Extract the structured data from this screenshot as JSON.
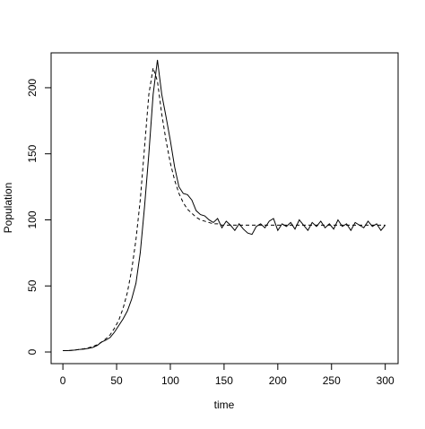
{
  "chart_data": {
    "type": "line",
    "xlabel": "time",
    "ylabel": "Population",
    "x": [
      0,
      4,
      8,
      12,
      16,
      20,
      24,
      28,
      32,
      36,
      40,
      44,
      48,
      52,
      56,
      60,
      64,
      68,
      72,
      76,
      80,
      84,
      88,
      92,
      96,
      100,
      104,
      108,
      112,
      116,
      120,
      124,
      128,
      132,
      136,
      140,
      144,
      148,
      152,
      156,
      160,
      164,
      168,
      172,
      176,
      180,
      184,
      188,
      192,
      196,
      200,
      204,
      208,
      212,
      216,
      220,
      224,
      228,
      232,
      236,
      240,
      244,
      248,
      252,
      256,
      260,
      264,
      268,
      272,
      276,
      280,
      284,
      288,
      292,
      296,
      300
    ],
    "series": [
      {
        "color": "#000000",
        "linestyle": "solid",
        "values": [
          1,
          1,
          1.2,
          1.5,
          2,
          2.2,
          2.8,
          3.5,
          5,
          7.5,
          9,
          11,
          15,
          20,
          25,
          31,
          40,
          52,
          75,
          110,
          150,
          195,
          221,
          195,
          178,
          160,
          140,
          125,
          120,
          119,
          115,
          107,
          104,
          103,
          100,
          98,
          101,
          94,
          99,
          96,
          92,
          97,
          93,
          90,
          89,
          95,
          97,
          94,
          99,
          101,
          92,
          97,
          95,
          98,
          93,
          100,
          96,
          92,
          98,
          95,
          99,
          94,
          97,
          93,
          100,
          95,
          97,
          92,
          98,
          96,
          94,
          99,
          95,
          97,
          92,
          96
        ]
      },
      {
        "color": "#000000",
        "linestyle": "dashed",
        "values": [
          1,
          1,
          1.3,
          1.6,
          2,
          2.5,
          3.2,
          4.2,
          5.5,
          7.5,
          10,
          13,
          18,
          24,
          33,
          45,
          62,
          85,
          115,
          155,
          195,
          215,
          205,
          180,
          160,
          143,
          130,
          120,
          113,
          108,
          105,
          102,
          100,
          99,
          98,
          97,
          97,
          96,
          96,
          96,
          96,
          96,
          96,
          96,
          96,
          96,
          96,
          96,
          96,
          96,
          96,
          96,
          96,
          96,
          96,
          96,
          96,
          96,
          96,
          96,
          96,
          96,
          96,
          96,
          96,
          96,
          96,
          96,
          96,
          96,
          96,
          96,
          96,
          96,
          96,
          96
        ]
      }
    ],
    "xlim": [
      -10.96,
      311.96
    ],
    "ylim": [
      -8.8,
      226.4
    ],
    "xticks": [
      0,
      50,
      100,
      150,
      200,
      250,
      300
    ],
    "yticks": [
      0,
      50,
      100,
      150,
      200
    ],
    "grid": false
  }
}
